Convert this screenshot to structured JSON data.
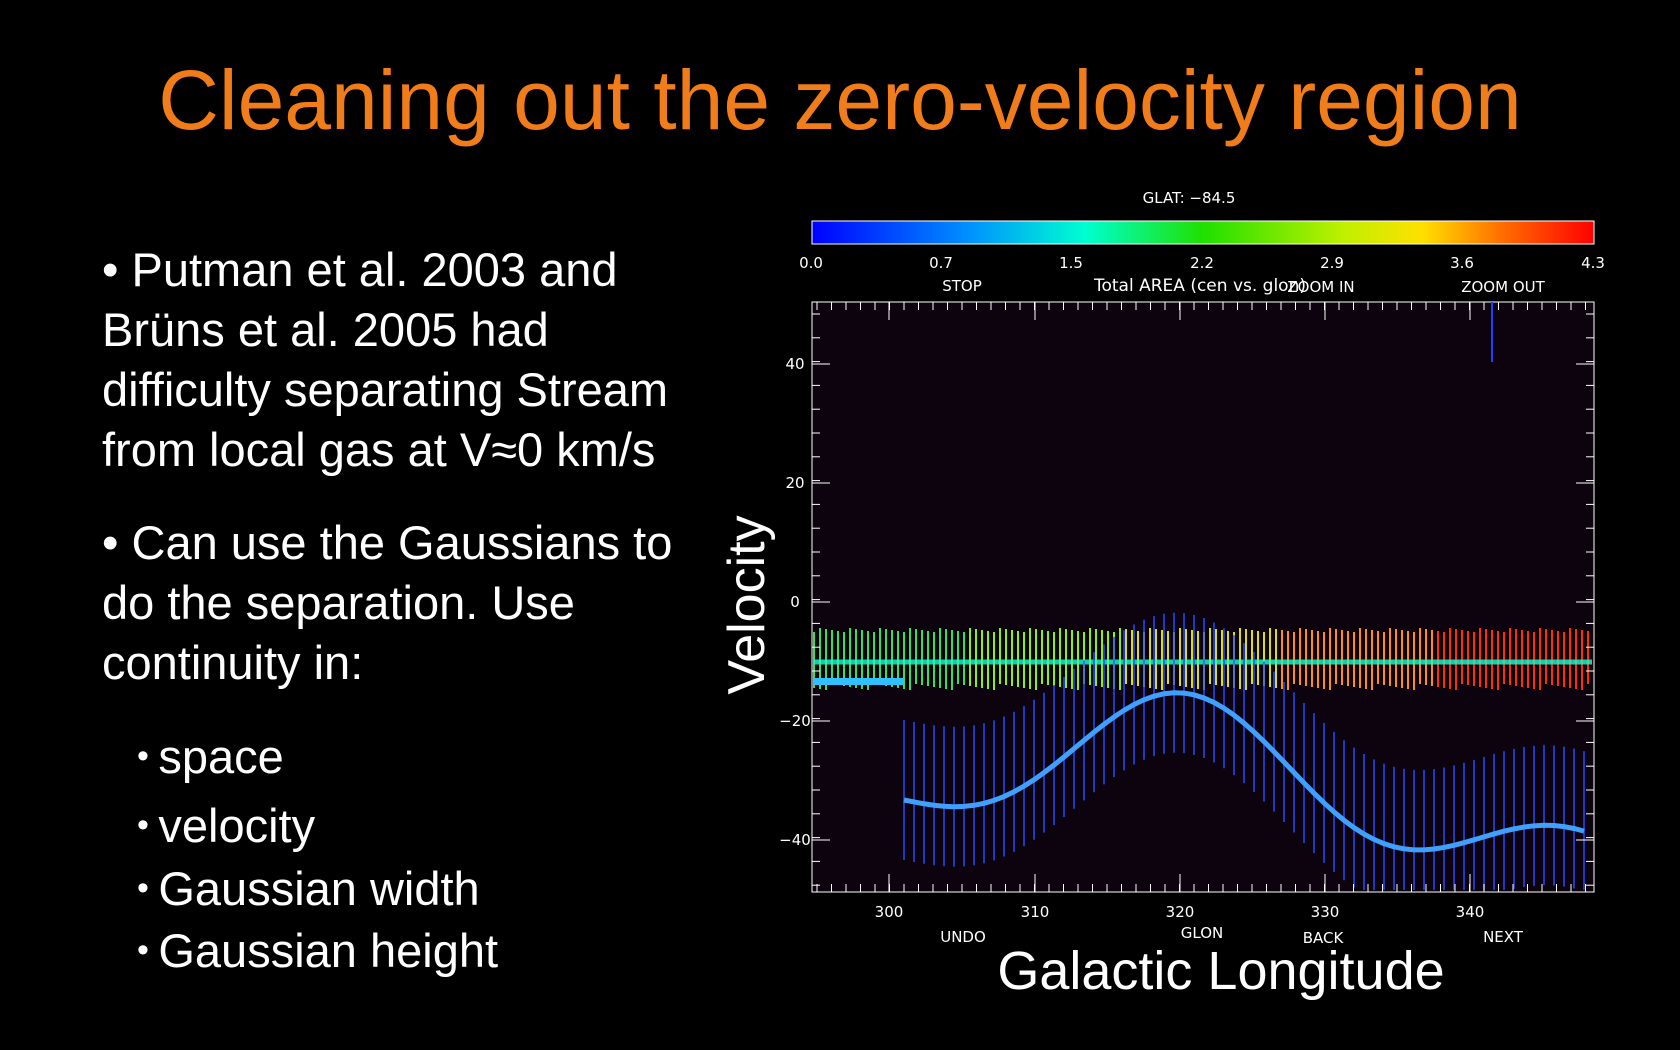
{
  "title": "Cleaning out the zero-velocity region",
  "bullets": [
    [
      "Putman et al. 2003 and",
      "Brüns et al. 2005 had",
      "difficulty separating Stream",
      "from local gas at V≈0 km/s"
    ],
    [
      "Can use the Gaussians to",
      "do the separation. Use",
      "continuity in:"
    ]
  ],
  "sub_bullets": [
    "space",
    "velocity",
    "Gaussian width",
    "Gaussian height"
  ],
  "plot": {
    "colorbar_title": "GLAT: −84.5",
    "colorbar_ticks": [
      "0.0",
      "0.7",
      "1.5",
      "2.2",
      "2.9",
      "3.6",
      "4.3"
    ],
    "plot_title": "Total AREA (cen vs. glon)",
    "top_buttons": [
      "STOP",
      "ZOOM IN",
      "ZOOM OUT"
    ],
    "y_ticks": [
      "40",
      "20",
      "0",
      "−20",
      "−40"
    ],
    "x_ticks": [
      "300",
      "310",
      "320",
      "330",
      "340"
    ],
    "bottom_buttons": [
      "UNDO",
      "BACK",
      "NEXT"
    ],
    "x_axis_inner": "GLON",
    "y_label": "Velocity",
    "x_label": "Galactic Longitude"
  }
}
